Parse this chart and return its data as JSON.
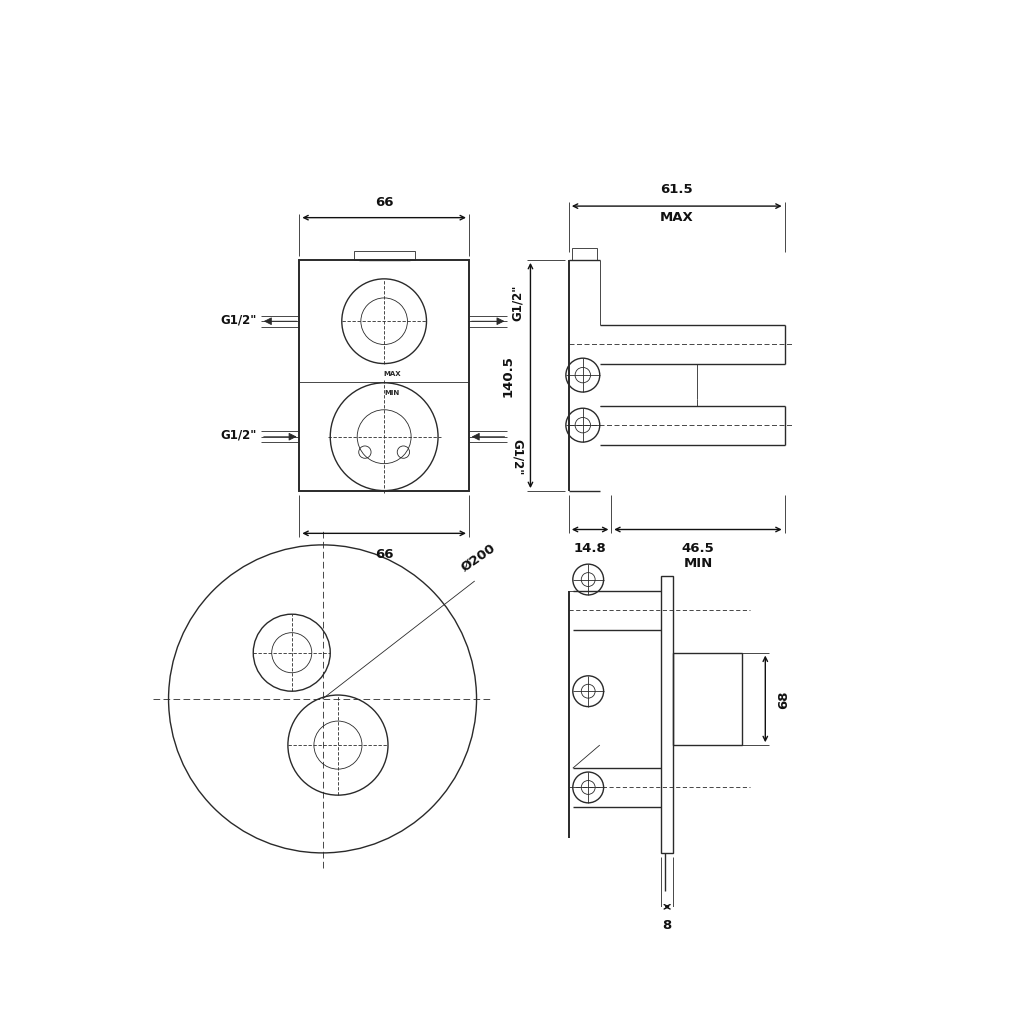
{
  "bg_color": "#ffffff",
  "lc": "#2a2a2a",
  "dc": "#111111",
  "thin": 0.6,
  "med": 1.0,
  "thick": 1.4,
  "fs": 9.5,
  "fs2": 8.5,
  "annotations": {
    "w66_top": "66",
    "w66_bot": "66",
    "g12_lu": "G1/2\"",
    "g12_ld": "G1/2\"",
    "g12_ru": "G1/2\"",
    "g12_rd": "G1/2\"",
    "h140": "140.5",
    "d61": "61.5",
    "max_label": "MAX",
    "d46": "46.5",
    "d14": "14.8",
    "min_label": "MIN",
    "diam": "Ø200",
    "h68": "68",
    "w8": "8"
  }
}
